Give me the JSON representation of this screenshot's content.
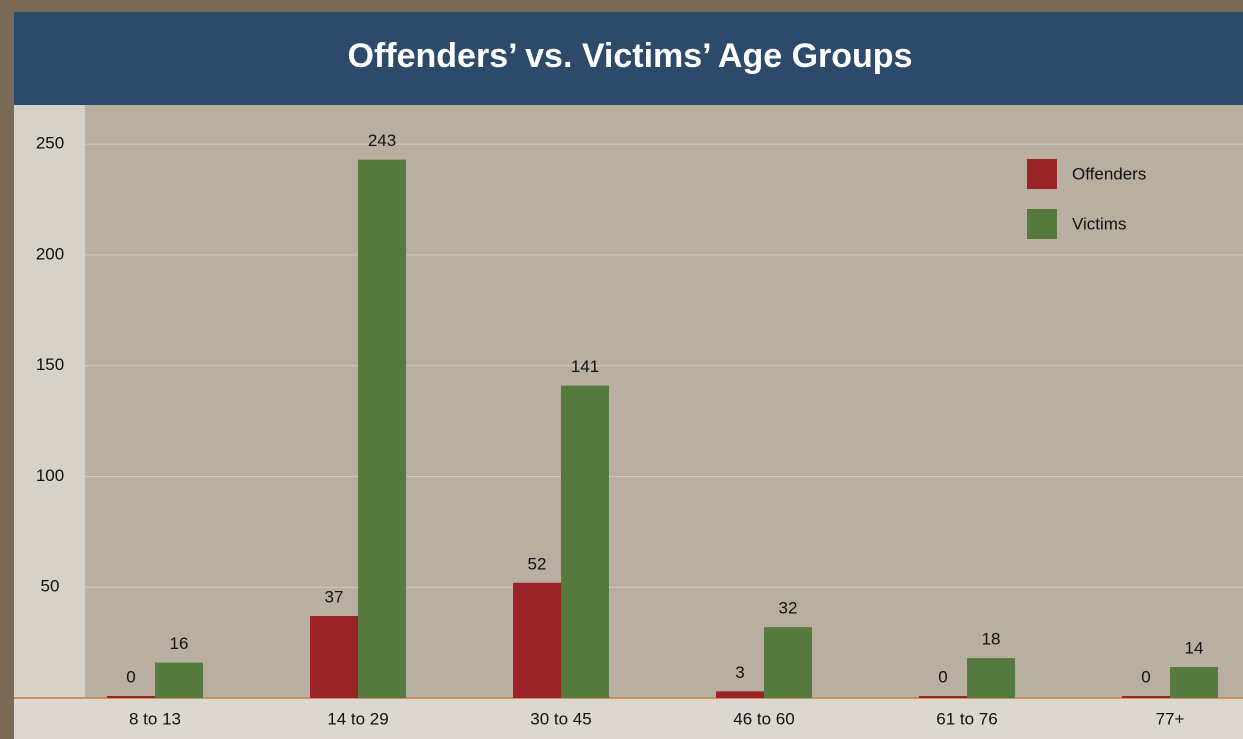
{
  "chart_data": {
    "type": "bar",
    "title": "Offenders’  vs. Victims’ Age Groups",
    "categories": [
      "8 to 13",
      "14 to 29",
      "30 to 45",
      "46 to 60",
      "61 to 76",
      "77+"
    ],
    "series": [
      {
        "name": "Offenders",
        "color": "#9b2226",
        "values": [
          0,
          37,
          52,
          3,
          0,
          0
        ]
      },
      {
        "name": "Victims",
        "color": "#567a3e",
        "values": [
          16,
          243,
          141,
          32,
          18,
          14
        ]
      }
    ],
    "ylim": [
      0,
      260
    ],
    "yticks": [
      50,
      100,
      150,
      200,
      250
    ],
    "grid": true,
    "legend": "top-right"
  }
}
